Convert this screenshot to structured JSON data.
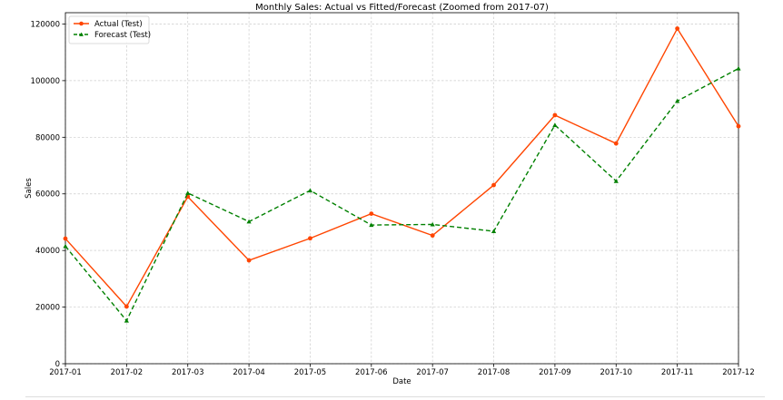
{
  "chart_data": {
    "type": "line",
    "title": "Monthly Sales: Actual vs Fitted/Forecast (Zoomed from 2017-07)",
    "xlabel": "Date",
    "ylabel": "Sales",
    "categories": [
      "2017-01",
      "2017-02",
      "2017-03",
      "2017-04",
      "2017-05",
      "2017-06",
      "2017-07",
      "2017-08",
      "2017-09",
      "2017-10",
      "2017-11",
      "2017-12"
    ],
    "ylim": [
      0,
      124000
    ],
    "yticks": [
      0,
      20000,
      40000,
      60000,
      80000,
      100000,
      120000
    ],
    "grid": true,
    "legend_position": "top-left",
    "series": [
      {
        "name": "Actual (Test)",
        "color": "#ff4500",
        "marker": "circle",
        "line_style": "solid",
        "values": [
          44200,
          20200,
          59000,
          36500,
          44300,
          53000,
          45300,
          63100,
          87800,
          77800,
          118400,
          83900
        ]
      },
      {
        "name": "Forecast (Test)",
        "color": "#008000",
        "marker": "triangle",
        "line_style": "dashed",
        "values": [
          41500,
          15200,
          60300,
          50200,
          61200,
          49000,
          49200,
          46800,
          84300,
          64500,
          92800,
          104300
        ]
      }
    ]
  }
}
